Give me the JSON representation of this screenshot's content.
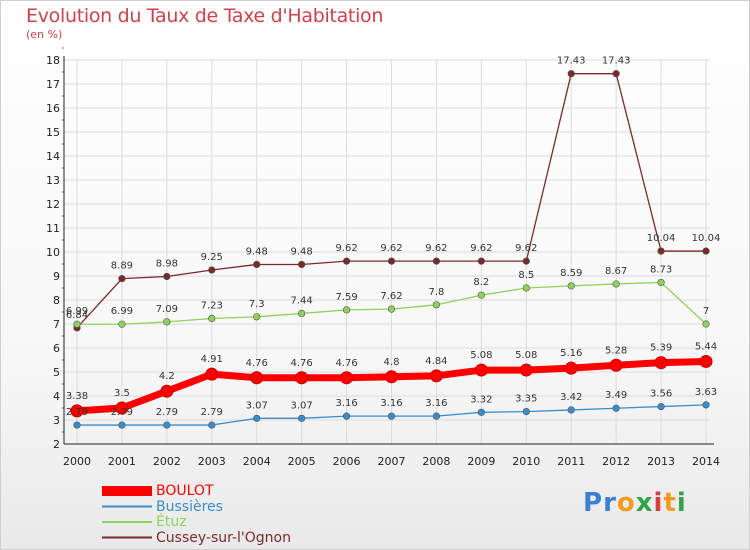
{
  "title": "Evolution du Taux de Taxe d'Habitation",
  "unit_label": "(en %)",
  "brand": {
    "letters": [
      "P",
      "r",
      "o",
      "x",
      "i",
      "t",
      "i"
    ],
    "colors": [
      "#3b7fd1",
      "#3b7fd1",
      "#f29b1d",
      "#2fa24a",
      "#d93c3c",
      "#f29b1d",
      "#2fa24a"
    ]
  },
  "chart_data": {
    "type": "line",
    "title": "Evolution du Taux de Taxe d'Habitation",
    "ylabel": "(en %)",
    "xlabel": "",
    "x": [
      "2000",
      "2001",
      "2002",
      "2003",
      "2004",
      "2005",
      "2006",
      "2007",
      "2008",
      "2009",
      "2010",
      "2011",
      "2012",
      "2013",
      "2014"
    ],
    "ylim": [
      2,
      18
    ],
    "yticks": [
      "2",
      "3",
      "4",
      "5",
      "6",
      "7",
      "8",
      "9",
      "10",
      "11",
      "12",
      "13",
      "14",
      "15",
      "16",
      "17",
      "18"
    ],
    "grid": true,
    "legend_position": "bottom-left",
    "series": [
      {
        "name": "BOULOT",
        "color": "#ff0000",
        "values": [
          3.38,
          3.5,
          4.2,
          4.91,
          4.76,
          4.76,
          4.76,
          4.8,
          4.84,
          5.08,
          5.08,
          5.16,
          5.28,
          5.39,
          5.44
        ],
        "labels": [
          "3.38",
          "3.5",
          "4.2",
          "4.91",
          "4.76",
          "4.76",
          "4.76",
          "4.8",
          "4.84",
          "5.08",
          "5.08",
          "5.16",
          "5.28",
          "5.39",
          "5.44"
        ]
      },
      {
        "name": "Bussières",
        "color": "#3a8ccc",
        "values": [
          2.79,
          2.79,
          2.79,
          2.79,
          3.07,
          3.07,
          3.16,
          3.16,
          3.16,
          3.32,
          3.35,
          3.42,
          3.49,
          3.56,
          3.63
        ],
        "labels": [
          "2.79",
          "2.79",
          "2.79",
          "2.79",
          "3.07",
          "3.07",
          "3.16",
          "3.16",
          "3.16",
          "3.32",
          "3.35",
          "3.42",
          "3.49",
          "3.56",
          "3.63"
        ]
      },
      {
        "name": "Étuz",
        "color": "#8dd35a",
        "values": [
          6.99,
          6.99,
          7.09,
          7.23,
          7.3,
          7.44,
          7.59,
          7.62,
          7.8,
          8.2,
          8.5,
          8.59,
          8.67,
          8.73,
          7
        ],
        "labels": [
          "6.99",
          "6.99",
          "7.09",
          "7.23",
          "7.3",
          "7.44",
          "7.59",
          "7.62",
          "7.8",
          "8.2",
          "8.5",
          "8.59",
          "8.67",
          "8.73",
          "7"
        ]
      },
      {
        "name": "Cussey-sur-l'Ognon",
        "color": "#7a2a2a",
        "values": [
          6.84,
          8.89,
          8.98,
          9.25,
          9.48,
          9.48,
          9.62,
          9.62,
          9.62,
          9.62,
          9.62,
          17.43,
          17.43,
          10.04,
          10.04
        ],
        "labels": [
          "6.84",
          "8.89",
          "8.98",
          "9.25",
          "9.48",
          "9.48",
          "9.62",
          "9.62",
          "9.62",
          "9.62",
          "9.62",
          "17.43",
          "17.43",
          "10.04",
          "10.04"
        ]
      }
    ]
  }
}
